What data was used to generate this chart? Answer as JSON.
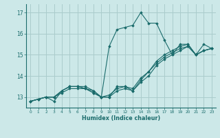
{
  "background_color": "#cce8e8",
  "grid_color": "#aacccc",
  "line_color": "#1a6b6b",
  "marker_color": "#1a6b6b",
  "xlabel": "Humidex (Indice chaleur)",
  "xlim": [
    -0.5,
    23.5
  ],
  "ylim": [
    12.5,
    17.4
  ],
  "yticks": [
    13,
    14,
    15,
    16,
    17
  ],
  "xticks": [
    0,
    1,
    2,
    3,
    4,
    5,
    6,
    7,
    8,
    9,
    10,
    11,
    12,
    13,
    14,
    15,
    16,
    17,
    18,
    19,
    20,
    21,
    22,
    23
  ],
  "series": [
    [
      12.8,
      12.9,
      13.0,
      12.8,
      13.3,
      13.5,
      13.5,
      13.5,
      13.3,
      13.0,
      15.4,
      16.2,
      16.3,
      16.4,
      17.0,
      16.5,
      16.5,
      15.7,
      15.0,
      15.5,
      15.5,
      15.0,
      15.5,
      15.3
    ],
    [
      12.8,
      12.9,
      13.0,
      13.0,
      13.3,
      13.5,
      13.5,
      13.4,
      13.3,
      13.0,
      13.0,
      13.5,
      13.5,
      13.3,
      13.8,
      14.2,
      14.7,
      15.0,
      15.2,
      15.4,
      15.5,
      15.0,
      15.2,
      15.3
    ],
    [
      12.8,
      12.9,
      13.0,
      13.0,
      13.3,
      13.5,
      13.5,
      13.4,
      13.2,
      13.0,
      13.1,
      13.4,
      13.5,
      13.4,
      13.9,
      14.2,
      14.6,
      14.9,
      15.1,
      15.3,
      15.4,
      15.0,
      15.2,
      15.3
    ],
    [
      12.8,
      12.9,
      13.0,
      13.0,
      13.2,
      13.4,
      13.4,
      13.4,
      13.2,
      13.0,
      13.0,
      13.3,
      13.4,
      13.3,
      13.7,
      14.0,
      14.5,
      14.8,
      15.0,
      15.2,
      15.4,
      15.0,
      15.2,
      15.3
    ]
  ]
}
